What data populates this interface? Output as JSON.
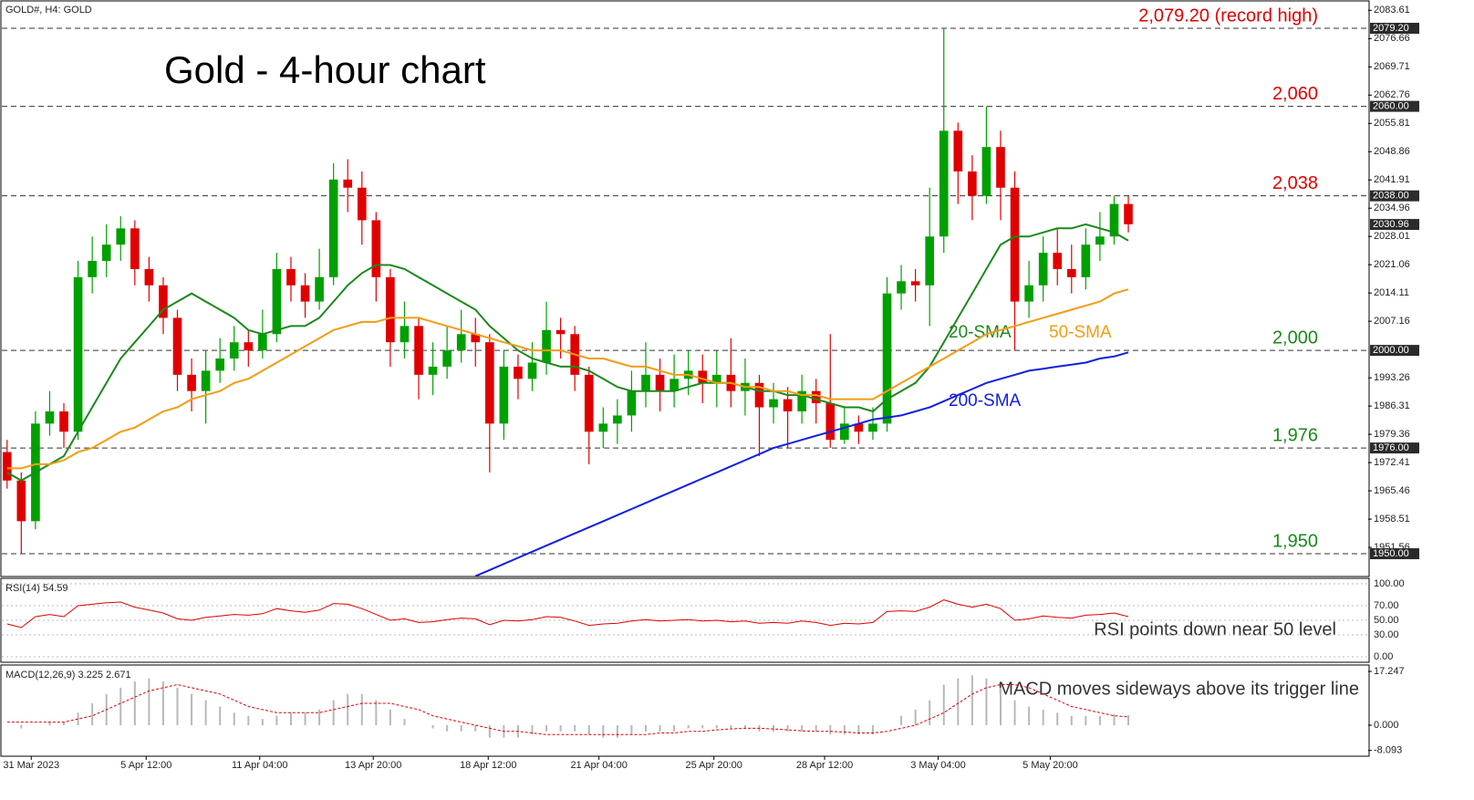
{
  "chart_data": {
    "type": "candlestick",
    "symbol": "GOLD#, H4:  GOLD",
    "title": "Gold - 4-hour chart",
    "up_color": "#00a000",
    "down_color": "#e00000",
    "xlim": [
      -0.5,
      95.9
    ],
    "xticks": [
      {
        "value": 1.7,
        "label": "31 Mar 2023"
      },
      {
        "value": 9.8,
        "label": "5 Apr 12:00"
      },
      {
        "value": 17.8,
        "label": "11 Apr 04:00"
      },
      {
        "value": 25.8,
        "label": "13 Apr 20:00"
      },
      {
        "value": 33.9,
        "label": "18 Apr 12:00"
      },
      {
        "value": 41.7,
        "label": "21 Apr 04:00"
      },
      {
        "value": 49.8,
        "label": "25 Apr 20:00"
      },
      {
        "value": 57.6,
        "label": "28 Apr 12:00"
      },
      {
        "value": 65.6,
        "label": "3 May 04:00"
      },
      {
        "value": 73.5,
        "label": "5 May 20:00"
      }
    ],
    "ylim": [
      1944.4,
      2086.15
    ],
    "yticks": [
      2083.61,
      2076.66,
      2069.71,
      2062.76,
      2055.81,
      2048.86,
      2041.91,
      2034.96,
      2028.01,
      2021.06,
      2014.11,
      2007.16,
      1993.26,
      1986.31,
      1979.36,
      1972.41,
      1965.46,
      1958.51,
      1951.56
    ],
    "price_tags": [
      {
        "value": 2079.2,
        "label": "2079.20"
      },
      {
        "value": 2060,
        "label": "2060.00"
      },
      {
        "value": 2038,
        "label": "2038.00"
      },
      {
        "value": 2030.96,
        "label": "2030.96"
      },
      {
        "value": 2000,
        "label": "2000.00"
      },
      {
        "value": 1976,
        "label": "1976.00"
      },
      {
        "value": 1950,
        "label": "1950.00"
      }
    ],
    "levels": [
      {
        "value": 2079.2,
        "label": "2,079.20 (record high)",
        "color": "#e00000"
      },
      {
        "value": 2060,
        "label": "2,060",
        "color": "#e00000"
      },
      {
        "value": 2038,
        "label": "2,038",
        "color": "#e00000"
      },
      {
        "value": 2000,
        "label": "2,000",
        "color": "#1a8a1a"
      },
      {
        "value": 1976,
        "label": "1,976",
        "color": "#1a8a1a"
      },
      {
        "value": 1950,
        "label": "1,950",
        "color": "#1a8a1a"
      }
    ],
    "open": [
      1975,
      1968,
      1958,
      1982,
      1985,
      1980,
      2018,
      2022,
      2026,
      2030,
      2020,
      2016,
      2008,
      1994,
      1990,
      1995,
      1998,
      2002,
      2000,
      2004,
      2020,
      2016,
      2012,
      2018,
      2042,
      2040,
      2032,
      2018,
      2002,
      2006,
      1994,
      1996,
      2000,
      2004,
      2002,
      1982,
      1996,
      1993,
      1997,
      2005,
      2004,
      1994,
      1980,
      1982,
      1984,
      1990,
      1994,
      1990,
      1993,
      1995,
      1992,
      1994,
      1990,
      1992,
      1986,
      1988,
      1985,
      1990,
      1987,
      1978,
      1982,
      1980,
      1982,
      2014,
      2017,
      2016,
      2028,
      2054,
      2044,
      2038,
      2050,
      2040,
      2012,
      2016,
      2024,
      2020,
      2018,
      2026,
      2028,
      2036
    ],
    "high": [
      1978,
      1970,
      1985,
      1990,
      1987,
      2022,
      2028,
      2031,
      2033,
      2032,
      2023,
      2018,
      2010,
      1998,
      2000,
      2003,
      2006,
      2005,
      2010,
      2024,
      2023,
      2019,
      2025,
      2046,
      2047,
      2044,
      2034,
      2020,
      2012,
      2008,
      2002,
      2006,
      2010,
      2008,
      2004,
      2000,
      1999,
      2002,
      2012,
      2008,
      2006,
      1996,
      1986,
      1988,
      1995,
      2002,
      1998,
      1999,
      2000,
      1999,
      2000,
      2003,
      1998,
      1994,
      1992,
      1991,
      1994,
      1993,
      2004,
      1986,
      1984,
      1986,
      2018,
      2021,
      2020,
      2040,
      2079.2,
      2056,
      2048,
      2060,
      2054,
      2044,
      2022,
      2028,
      2030,
      2026,
      2030,
      2034,
      2038,
      2038
    ],
    "low": [
      1966,
      1950,
      1956,
      1979,
      1976,
      1978,
      2014,
      2018,
      2022,
      2016,
      2012,
      2004,
      1990,
      1985,
      1982,
      1992,
      1995,
      1996,
      1998,
      2002,
      2012,
      2008,
      2010,
      2016,
      2034,
      2026,
      2012,
      1996,
      1998,
      1988,
      1989,
      1993,
      1997,
      1996,
      1970,
      1978,
      1988,
      1990,
      1994,
      1998,
      1990,
      1972,
      1976,
      1977,
      1980,
      1986,
      1985,
      1986,
      1989,
      1987,
      1986,
      1986,
      1984,
      1974,
      1982,
      1976,
      1982,
      1982,
      1976,
      1977,
      1977,
      1978,
      1980,
      2010,
      2012,
      2006,
      2024,
      2036,
      2032,
      2036,
      2032,
      2000,
      2008,
      2012,
      2016,
      2014,
      2015,
      2022,
      2026,
      2029
    ],
    "close": [
      1968,
      1958,
      1982,
      1985,
      1980,
      2018,
      2022,
      2026,
      2030,
      2020,
      2016,
      2008,
      1994,
      1990,
      1995,
      1998,
      2002,
      2000,
      2004,
      2020,
      2016,
      2012,
      2018,
      2042,
      2040,
      2032,
      2018,
      2002,
      2006,
      1994,
      1996,
      2000,
      2004,
      2002,
      1982,
      1996,
      1993,
      1997,
      2005,
      2004,
      1994,
      1980,
      1982,
      1984,
      1990,
      1994,
      1990,
      1993,
      1995,
      1992,
      1994,
      1990,
      1992,
      1986,
      1988,
      1985,
      1990,
      1987,
      1978,
      1982,
      1980,
      1982,
      2014,
      2017,
      2016,
      2028,
      2054,
      2044,
      2038,
      2050,
      2040,
      2012,
      2016,
      2024,
      2020,
      2018,
      2026,
      2028,
      2036,
      2031
    ],
    "series": [
      {
        "name": "20-SMA",
        "color": "#1a8a1a",
        "values": [
          1970,
          1968,
          1970,
          1972,
          1974,
          1980,
          1986,
          1992,
          1998,
          2002,
          2006,
          2010,
          2012,
          2014,
          2012,
          2010,
          2008,
          2005,
          2004,
          2005,
          2006,
          2006,
          2008,
          2012,
          2016,
          2019,
          2021,
          2021,
          2020,
          2018,
          2016,
          2014,
          2012,
          2010,
          2006,
          2003,
          2000,
          1998,
          1997,
          1996,
          1996,
          1995,
          1993,
          1991,
          1990,
          1990,
          1990,
          1990,
          1991,
          1992,
          1992,
          1992,
          1991,
          1990,
          1990,
          1989,
          1989,
          1988,
          1987,
          1986,
          1986,
          1985,
          1988,
          1990,
          1992,
          1996,
          2002,
          2008,
          2014,
          2020,
          2026,
          2028,
          2028,
          2029,
          2030,
          2030,
          2031,
          2030,
          2029,
          2027
        ]
      },
      {
        "name": "50-SMA",
        "color": "#f39c12",
        "values": [
          1971,
          1971,
          1972,
          1972,
          1973,
          1975,
          1976,
          1978,
          1980,
          1981,
          1983,
          1985,
          1986,
          1988,
          1989,
          1990,
          1992,
          1993,
          1995,
          1997,
          1999,
          2001,
          2003,
          2005,
          2006,
          2007,
          2007,
          2008,
          2008,
          2008,
          2007,
          2006,
          2005,
          2004,
          2003,
          2002,
          2001,
          2000,
          2000,
          2000,
          1999,
          1998,
          1998,
          1997,
          1996,
          1996,
          1995,
          1994,
          1994,
          1993,
          1992,
          1992,
          1991,
          1991,
          1990,
          1990,
          1989,
          1989,
          1988,
          1988,
          1988,
          1988,
          1990,
          1992,
          1994,
          1996,
          1998,
          2000,
          2002,
          2004,
          2005,
          2006,
          2007,
          2008,
          2009,
          2010,
          2011,
          2012,
          2014,
          2015
        ]
      },
      {
        "name": "200-SMA",
        "color": "#1020e0",
        "values": [
          null,
          null,
          null,
          null,
          null,
          null,
          null,
          null,
          null,
          null,
          null,
          null,
          null,
          null,
          null,
          null,
          null,
          null,
          null,
          null,
          null,
          null,
          null,
          null,
          null,
          null,
          null,
          null,
          null,
          null,
          null,
          null,
          null,
          1944.5,
          1946,
          1947.5,
          1949,
          1950.5,
          1952,
          1953.5,
          1955,
          1956.5,
          1958,
          1959.5,
          1961,
          1962.5,
          1964,
          1965.5,
          1967,
          1968.5,
          1970,
          1971.5,
          1973,
          1974.5,
          1976,
          1977,
          1978,
          1979,
          1980,
          1981,
          1982,
          1983,
          1983.5,
          1984,
          1985,
          1986,
          1987.5,
          1989,
          1990.5,
          1992,
          1993,
          1994,
          1995,
          1995.5,
          1996,
          1996.5,
          1997,
          1998,
          1998.5,
          1999.5
        ]
      }
    ],
    "rsi": {
      "title": "RSI(14) 54.59",
      "note": "RSI points down near 50 level",
      "color": "#e00000",
      "ylim": [
        -7.5,
        107.5
      ],
      "yticks": [
        {
          "value": 100,
          "label": "100.00"
        },
        {
          "value": 70,
          "label": "70.00"
        },
        {
          "value": 50,
          "label": "50.00"
        },
        {
          "value": 30,
          "label": "30.00"
        },
        {
          "value": 0,
          "label": "0.00"
        }
      ],
      "values": [
        45,
        40,
        55,
        58,
        55,
        70,
        72,
        74,
        75,
        68,
        64,
        60,
        52,
        50,
        54,
        56,
        58,
        57,
        59,
        66,
        63,
        61,
        64,
        73,
        72,
        66,
        58,
        50,
        52,
        47,
        48,
        51,
        53,
        52,
        44,
        50,
        49,
        51,
        55,
        54,
        49,
        43,
        45,
        46,
        49,
        51,
        49,
        50,
        51,
        49,
        50,
        48,
        49,
        46,
        47,
        46,
        49,
        47,
        43,
        46,
        45,
        47,
        62,
        63,
        62,
        68,
        78,
        72,
        68,
        72,
        66,
        50,
        52,
        56,
        54,
        53,
        57,
        58,
        60,
        55
      ]
    },
    "macd": {
      "title": "MACD(12,26,9) 3.225 2.671",
      "note": "MACD moves sideways above its trigger line",
      "hist_color": "#b8b8b8",
      "signal_color": "#e00000",
      "ylim": [
        -9.94,
        19.29
      ],
      "yticks": [
        17.247,
        {
          "value": 0,
          "label": "0.000"
        },
        -8.093
      ],
      "histogram": [
        0,
        -1,
        0,
        1,
        1,
        4,
        7,
        10,
        12,
        14,
        15,
        14,
        12,
        10,
        8,
        6,
        4,
        3,
        2,
        3,
        4,
        4,
        5,
        8,
        10,
        10,
        8,
        5,
        2,
        0,
        -1,
        -2,
        -2,
        -2,
        -4,
        -4,
        -4,
        -3,
        -2,
        -2,
        -2,
        -3,
        -4,
        -4,
        -3,
        -2,
        -2,
        -2,
        -1,
        -1,
        -1,
        -1,
        -1,
        -2,
        -2,
        -2,
        -2,
        -2,
        -3,
        -3,
        -3,
        -3,
        0,
        3,
        5,
        8,
        13,
        15,
        16,
        15,
        12,
        8,
        6,
        5,
        4,
        3,
        3,
        3,
        3.5,
        3.225
      ],
      "signal": [
        1,
        1,
        1,
        1,
        1,
        2,
        3,
        5,
        7,
        9,
        11,
        12,
        13,
        12,
        11,
        10,
        8,
        6,
        5,
        4,
        4,
        4,
        4,
        5,
        6,
        7,
        7,
        7,
        6,
        5,
        3,
        2,
        1,
        0,
        -1,
        -2,
        -2,
        -2.5,
        -3,
        -3,
        -3,
        -3,
        -3,
        -3,
        -3,
        -3,
        -2.5,
        -2.5,
        -2,
        -2,
        -1.5,
        -1.2,
        -1,
        -1,
        -1.2,
        -1.5,
        -1.8,
        -2,
        -2,
        -2.2,
        -2.5,
        -2.5,
        -2,
        -1,
        0,
        2,
        4,
        7,
        10,
        12,
        13,
        13,
        12,
        10,
        8,
        6,
        5,
        4,
        3,
        2.671
      ]
    }
  }
}
